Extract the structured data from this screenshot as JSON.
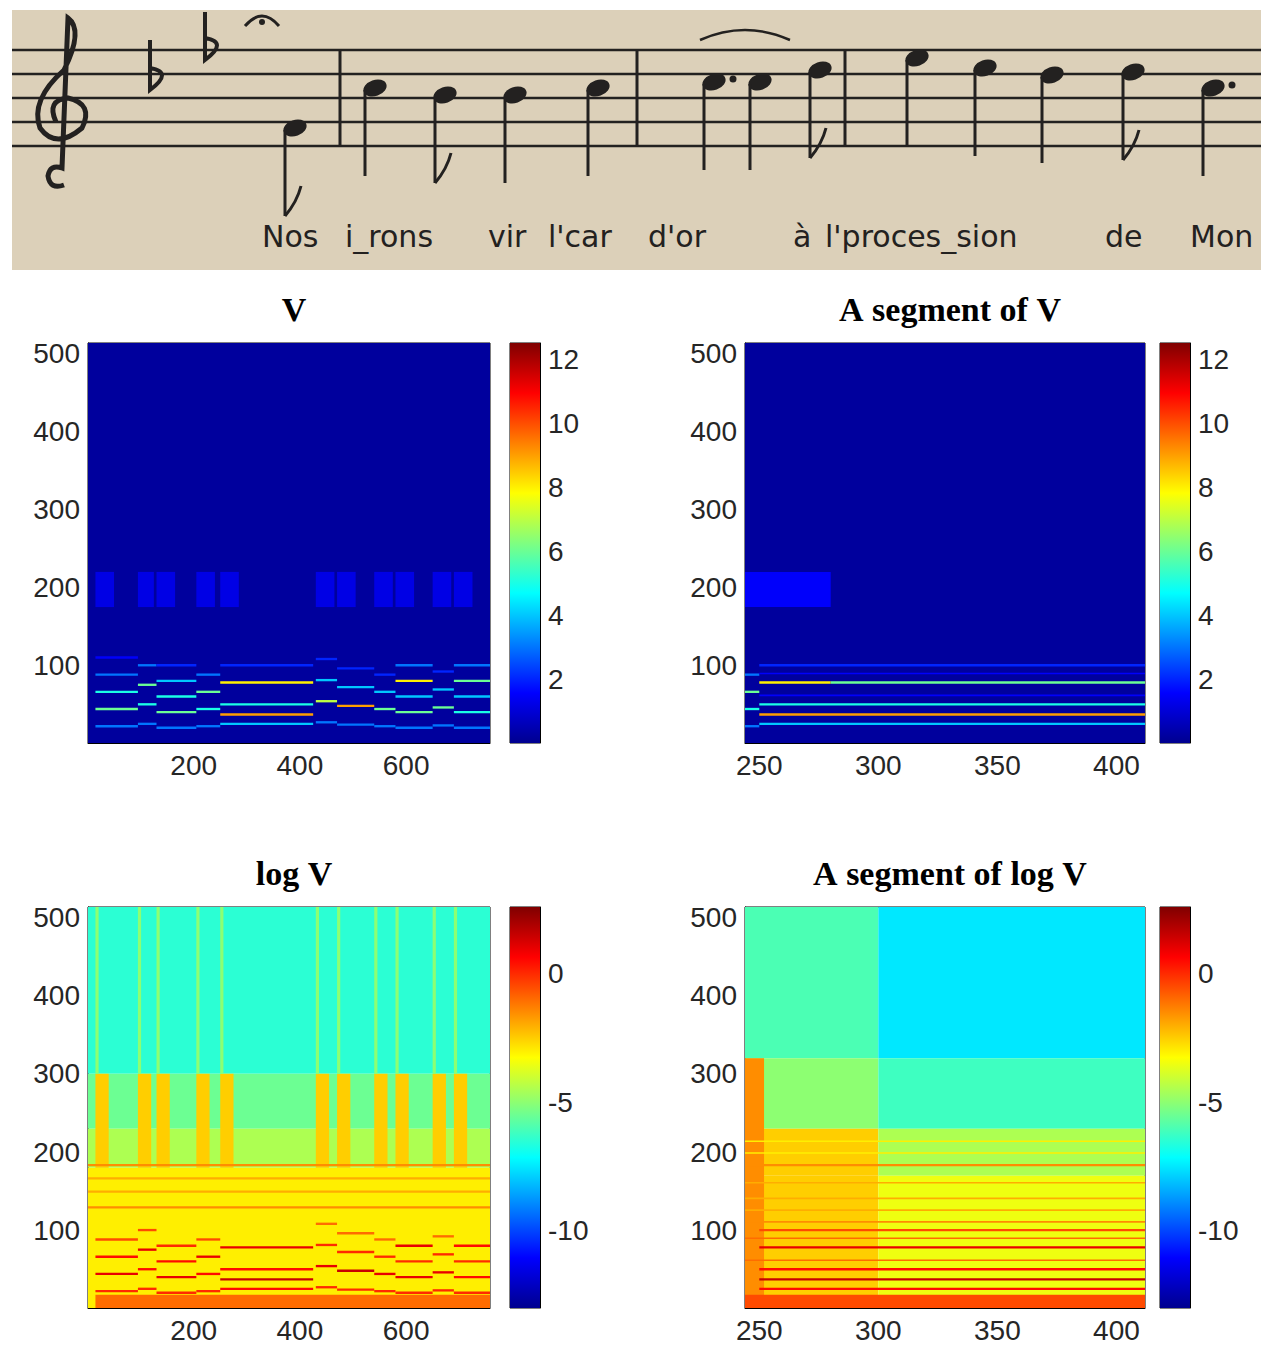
{
  "score": {
    "lyrics": [
      "Nos",
      "i_rons",
      "vir",
      "l'car",
      "d'or",
      "à",
      "l'proces_sion",
      "de",
      "Mon"
    ]
  },
  "chart_data": [
    {
      "type": "heatmap",
      "title": "V",
      "xlim": [
        1,
        758
      ],
      "xticks": [
        200,
        400,
        600
      ],
      "ylim": [
        1,
        513
      ],
      "yticks": [
        100,
        200,
        300,
        400,
        500
      ],
      "grid": false,
      "colorbar": {
        "range": [
          0,
          12.5
        ],
        "ticks": [
          2,
          4,
          6,
          8,
          10,
          12
        ]
      },
      "cells": [
        [
          1,
          758,
          1,
          513,
          0.2
        ],
        [
          15,
          95,
          21,
          24,
          3
        ],
        [
          15,
          95,
          43,
          46,
          6
        ],
        [
          15,
          95,
          65,
          68,
          5
        ],
        [
          15,
          95,
          87,
          90,
          3
        ],
        [
          15,
          95,
          109,
          112,
          1.5
        ],
        [
          15,
          50,
          175,
          220,
          1.2
        ],
        [
          95,
          130,
          24,
          27,
          3
        ],
        [
          95,
          130,
          49,
          52,
          5
        ],
        [
          95,
          130,
          74,
          77,
          6
        ],
        [
          95,
          130,
          99,
          102,
          3
        ],
        [
          95,
          125,
          175,
          220,
          1.2
        ],
        [
          130,
          205,
          19,
          22,
          3
        ],
        [
          130,
          205,
          39,
          42,
          6
        ],
        [
          130,
          205,
          59,
          62,
          5
        ],
        [
          130,
          205,
          79,
          82,
          4
        ],
        [
          130,
          205,
          99,
          102,
          2
        ],
        [
          130,
          165,
          175,
          220,
          1.2
        ],
        [
          205,
          250,
          21,
          24,
          3
        ],
        [
          205,
          250,
          43,
          46,
          5
        ],
        [
          205,
          250,
          65,
          68,
          6
        ],
        [
          205,
          250,
          87,
          90,
          3
        ],
        [
          205,
          240,
          175,
          220,
          1.2
        ],
        [
          250,
          425,
          24,
          27,
          4
        ],
        [
          250,
          425,
          36,
          39,
          9
        ],
        [
          250,
          425,
          49,
          52,
          5
        ],
        [
          250,
          425,
          77,
          80,
          8
        ],
        [
          250,
          425,
          99,
          102,
          2
        ],
        [
          250,
          285,
          175,
          220,
          1.2
        ],
        [
          430,
          470,
          26,
          29,
          3
        ],
        [
          430,
          470,
          53,
          56,
          7
        ],
        [
          430,
          470,
          80,
          83,
          4
        ],
        [
          430,
          470,
          107,
          110,
          2
        ],
        [
          430,
          465,
          175,
          220,
          1.2
        ],
        [
          470,
          540,
          23,
          26,
          3
        ],
        [
          470,
          540,
          47,
          50,
          9
        ],
        [
          470,
          540,
          71,
          74,
          4
        ],
        [
          470,
          540,
          95,
          98,
          2
        ],
        [
          470,
          505,
          175,
          220,
          1.2
        ],
        [
          540,
          580,
          21,
          24,
          3
        ],
        [
          540,
          580,
          43,
          46,
          6
        ],
        [
          540,
          580,
          65,
          68,
          4
        ],
        [
          540,
          580,
          87,
          90,
          2
        ],
        [
          540,
          575,
          175,
          220,
          1.2
        ],
        [
          580,
          650,
          19,
          22,
          3
        ],
        [
          580,
          650,
          39,
          42,
          6
        ],
        [
          580,
          650,
          59,
          62,
          4
        ],
        [
          580,
          650,
          79,
          82,
          8
        ],
        [
          580,
          650,
          99,
          102,
          3
        ],
        [
          580,
          615,
          175,
          220,
          1.2
        ],
        [
          650,
          690,
          22,
          25,
          3
        ],
        [
          650,
          690,
          45,
          48,
          6
        ],
        [
          650,
          690,
          68,
          71,
          4
        ],
        [
          650,
          690,
          91,
          94,
          2
        ],
        [
          650,
          685,
          175,
          220,
          1.2
        ],
        [
          690,
          758,
          19,
          22,
          3
        ],
        [
          690,
          758,
          39,
          42,
          5
        ],
        [
          690,
          758,
          59,
          62,
          4
        ],
        [
          690,
          758,
          79,
          82,
          6
        ],
        [
          690,
          758,
          99,
          102,
          3
        ],
        [
          690,
          725,
          175,
          220,
          1.2
        ]
      ]
    },
    {
      "type": "heatmap",
      "title": "A segment of V",
      "xlim": [
        244,
        412
      ],
      "xticks": [
        250,
        300,
        350,
        400
      ],
      "ylim": [
        1,
        513
      ],
      "yticks": [
        100,
        200,
        300,
        400,
        500
      ],
      "grid": false,
      "colorbar": {
        "range": [
          0,
          12.5
        ],
        "ticks": [
          2,
          4,
          6,
          8,
          10,
          12
        ]
      },
      "cells": [
        [
          244,
          412,
          1,
          513,
          0.2
        ],
        [
          244,
          250,
          21,
          24,
          3
        ],
        [
          244,
          250,
          43,
          46,
          5
        ],
        [
          244,
          250,
          65,
          68,
          6
        ],
        [
          244,
          250,
          87,
          90,
          3
        ],
        [
          250,
          412,
          24,
          27,
          4
        ],
        [
          250,
          412,
          36,
          39,
          9
        ],
        [
          250,
          412,
          49,
          52,
          5
        ],
        [
          250,
          280,
          77,
          80,
          8
        ],
        [
          280,
          412,
          77,
          80,
          6
        ],
        [
          250,
          412,
          61,
          63,
          1.5
        ],
        [
          250,
          412,
          89,
          91,
          1.5
        ],
        [
          250,
          412,
          99,
          102,
          2
        ],
        [
          244,
          280,
          175,
          220,
          1.5
        ]
      ]
    },
    {
      "type": "heatmap",
      "title": "log V",
      "xlim": [
        1,
        758
      ],
      "xticks": [
        200,
        400,
        600
      ],
      "ylim": [
        1,
        513
      ],
      "yticks": [
        100,
        200,
        300,
        400,
        500
      ],
      "grid": false,
      "colorbar": {
        "range": [
          -13,
          2.6
        ],
        "ticks": [
          -10,
          -5,
          0
        ]
      },
      "cells": [
        [
          1,
          758,
          300,
          513,
          -6.5
        ],
        [
          1,
          758,
          230,
          300,
          -5.5
        ],
        [
          1,
          758,
          180,
          230,
          -4.5
        ],
        [
          1,
          758,
          1,
          180,
          -3
        ],
        [
          15,
          40,
          180,
          300,
          -2.5
        ],
        [
          95,
          120,
          180,
          300,
          -2.5
        ],
        [
          130,
          155,
          180,
          300,
          -2.5
        ],
        [
          205,
          230,
          180,
          300,
          -2.5
        ],
        [
          250,
          275,
          180,
          300,
          -2.5
        ],
        [
          430,
          455,
          180,
          300,
          -2.5
        ],
        [
          470,
          495,
          180,
          300,
          -2.5
        ],
        [
          540,
          565,
          180,
          300,
          -2.5
        ],
        [
          580,
          605,
          180,
          300,
          -2.5
        ],
        [
          650,
          675,
          180,
          300,
          -2.5
        ],
        [
          690,
          715,
          180,
          300,
          -2.5
        ],
        [
          15,
          21,
          300,
          513,
          -5
        ],
        [
          95,
          101,
          300,
          513,
          -5
        ],
        [
          130,
          136,
          300,
          513,
          -5
        ],
        [
          205,
          211,
          300,
          513,
          -5
        ],
        [
          250,
          256,
          300,
          513,
          -5
        ],
        [
          430,
          436,
          300,
          513,
          -5
        ],
        [
          470,
          476,
          300,
          513,
          -5
        ],
        [
          540,
          546,
          300,
          513,
          -5
        ],
        [
          580,
          586,
          300,
          513,
          -5
        ],
        [
          650,
          656,
          300,
          513,
          -5
        ],
        [
          690,
          696,
          300,
          513,
          -5
        ],
        [
          1,
          758,
          182,
          185,
          -1.5
        ],
        [
          1,
          758,
          128,
          131,
          -1.5
        ],
        [
          1,
          758,
          148,
          151,
          -2
        ],
        [
          1,
          758,
          165,
          168,
          -2
        ],
        [
          15,
          758,
          1,
          18,
          -1
        ],
        [
          15,
          95,
          21,
          24,
          0
        ],
        [
          15,
          95,
          43,
          46,
          1
        ],
        [
          15,
          95,
          65,
          68,
          0.5
        ],
        [
          15,
          95,
          87,
          90,
          -0.5
        ],
        [
          95,
          130,
          24,
          27,
          0
        ],
        [
          95,
          130,
          49,
          52,
          0.5
        ],
        [
          95,
          130,
          74,
          77,
          1
        ],
        [
          95,
          130,
          99,
          102,
          -0.5
        ],
        [
          130,
          205,
          19,
          22,
          0
        ],
        [
          130,
          205,
          39,
          42,
          1
        ],
        [
          130,
          205,
          59,
          62,
          0.5
        ],
        [
          130,
          205,
          79,
          82,
          0
        ],
        [
          205,
          250,
          21,
          24,
          0
        ],
        [
          205,
          250,
          43,
          46,
          0.5
        ],
        [
          205,
          250,
          65,
          68,
          1
        ],
        [
          205,
          250,
          87,
          90,
          -0.5
        ],
        [
          250,
          425,
          24,
          27,
          0.5
        ],
        [
          250,
          425,
          36,
          39,
          1.5
        ],
        [
          250,
          425,
          49,
          52,
          0.5
        ],
        [
          250,
          425,
          77,
          80,
          1
        ],
        [
          430,
          470,
          26,
          29,
          0
        ],
        [
          430,
          470,
          53,
          56,
          1
        ],
        [
          430,
          470,
          80,
          83,
          0
        ],
        [
          430,
          470,
          107,
          110,
          -1
        ],
        [
          470,
          540,
          23,
          26,
          0
        ],
        [
          470,
          540,
          47,
          50,
          1.5
        ],
        [
          470,
          540,
          71,
          74,
          0
        ],
        [
          470,
          540,
          95,
          98,
          -1
        ],
        [
          540,
          580,
          21,
          24,
          0
        ],
        [
          540,
          580,
          43,
          46,
          1
        ],
        [
          540,
          580,
          65,
          68,
          0
        ],
        [
          540,
          580,
          87,
          90,
          -1
        ],
        [
          580,
          650,
          19,
          22,
          0
        ],
        [
          580,
          650,
          39,
          42,
          1
        ],
        [
          580,
          650,
          59,
          62,
          0
        ],
        [
          580,
          650,
          79,
          82,
          1
        ],
        [
          650,
          690,
          22,
          25,
          0
        ],
        [
          650,
          690,
          45,
          48,
          1
        ],
        [
          650,
          690,
          68,
          71,
          0
        ],
        [
          650,
          690,
          91,
          94,
          -1
        ],
        [
          690,
          758,
          19,
          22,
          0
        ],
        [
          690,
          758,
          39,
          42,
          0.5
        ],
        [
          690,
          758,
          59,
          62,
          0
        ],
        [
          690,
          758,
          79,
          82,
          0.5
        ]
      ]
    },
    {
      "type": "heatmap",
      "title": "A segment of log V",
      "xlim": [
        244,
        412
      ],
      "xticks": [
        250,
        300,
        350,
        400
      ],
      "ylim": [
        1,
        513
      ],
      "yticks": [
        100,
        200,
        300,
        400,
        500
      ],
      "grid": false,
      "colorbar": {
        "range": [
          -13,
          2.6
        ],
        "ticks": [
          -10,
          -5,
          0
        ]
      },
      "cells": [
        [
          244,
          300,
          320,
          513,
          -6
        ],
        [
          300,
          412,
          320,
          513,
          -7.5
        ],
        [
          244,
          300,
          230,
          320,
          -5
        ],
        [
          300,
          412,
          230,
          320,
          -6.2
        ],
        [
          244,
          300,
          170,
          230,
          -2.5
        ],
        [
          300,
          412,
          170,
          230,
          -4.5
        ],
        [
          244,
          300,
          1,
          170,
          -2.5
        ],
        [
          300,
          412,
          1,
          170,
          -3.5
        ],
        [
          244,
          252,
          1,
          320,
          -1.5
        ],
        [
          244,
          412,
          182,
          185,
          -1.5
        ],
        [
          244,
          412,
          198,
          200,
          -3
        ],
        [
          244,
          412,
          213,
          215,
          -3
        ],
        [
          244,
          412,
          160,
          162,
          -2
        ],
        [
          244,
          412,
          140,
          142,
          -2
        ],
        [
          244,
          412,
          125,
          127,
          -2
        ],
        [
          244,
          412,
          110,
          112,
          -1.5
        ],
        [
          244,
          412,
          89,
          91,
          -1
        ],
        [
          244,
          412,
          61,
          63,
          -1
        ],
        [
          244,
          412,
          1,
          18,
          -0.5
        ],
        [
          250,
          412,
          24,
          27,
          0.5
        ],
        [
          250,
          412,
          36,
          39,
          1.5
        ],
        [
          250,
          412,
          49,
          52,
          0.5
        ],
        [
          250,
          412,
          77,
          80,
          1
        ],
        [
          250,
          412,
          99,
          102,
          -0.5
        ]
      ]
    }
  ]
}
